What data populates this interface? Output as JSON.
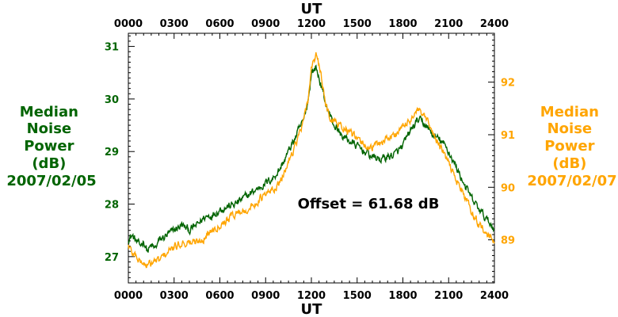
{
  "chart_data": {
    "type": "line",
    "x_unit_label": "UT",
    "x_ticks": [
      "0000",
      "0300",
      "0600",
      "0900",
      "1200",
      "1500",
      "1800",
      "2100",
      "2400"
    ],
    "xlim": [
      0,
      24
    ],
    "left_axis": {
      "label_lines": [
        "Median",
        "Noise",
        "Power",
        "(dB)",
        "2007/02/05"
      ],
      "ticks": [
        27,
        28,
        29,
        30,
        31
      ],
      "ylim": [
        26.5,
        31.25
      ],
      "color": "#006400"
    },
    "right_axis": {
      "label_lines": [
        "Median",
        "Noise",
        "Power",
        "(dB)",
        "2007/02/07"
      ],
      "ticks": [
        89,
        90,
        91,
        92
      ],
      "ylim": [
        88.18,
        92.93
      ],
      "color": "#FFA500"
    },
    "annotation": "Offset = 61.68 dB",
    "series": [
      {
        "axis": "left",
        "color": "#006400",
        "x": [
          0,
          0.25,
          0.5,
          0.75,
          1,
          1.25,
          1.5,
          1.75,
          2,
          2.5,
          3,
          3.5,
          4,
          4.5,
          5,
          5.5,
          6,
          6.5,
          7,
          7.5,
          8,
          8.5,
          9,
          9.5,
          10,
          10.5,
          11,
          11.5,
          11.8,
          12,
          12.3,
          12.6,
          12.9,
          13.2,
          13.5,
          14,
          14.5,
          15,
          15.5,
          16,
          16.5,
          17,
          17.5,
          18,
          18.5,
          19,
          19.5,
          20,
          20.5,
          21,
          21.5,
          22,
          22.5,
          23,
          23.5,
          24
        ],
        "y": [
          27.35,
          27.4,
          27.3,
          27.2,
          27.3,
          27.1,
          27.2,
          27.15,
          27.3,
          27.4,
          27.5,
          27.6,
          27.5,
          27.6,
          27.75,
          27.8,
          27.9,
          27.95,
          28.0,
          28.1,
          28.2,
          28.3,
          28.4,
          28.5,
          28.7,
          29.0,
          29.3,
          29.6,
          30.0,
          30.5,
          30.6,
          30.3,
          29.95,
          29.7,
          29.5,
          29.3,
          29.2,
          29.1,
          29.0,
          28.9,
          28.85,
          28.9,
          28.95,
          29.1,
          29.4,
          29.6,
          29.5,
          29.3,
          29.2,
          29.0,
          28.7,
          28.4,
          28.1,
          27.9,
          27.7,
          27.55
        ]
      },
      {
        "axis": "right",
        "color": "#FFA500",
        "x": [
          0,
          0.25,
          0.5,
          0.75,
          1,
          1.25,
          1.5,
          1.75,
          2,
          2.5,
          3,
          3.5,
          4,
          4.5,
          5,
          5.5,
          6,
          6.5,
          7,
          7.5,
          8,
          8.5,
          9,
          9.5,
          10,
          10.5,
          11,
          11.5,
          11.8,
          12,
          12.3,
          12.6,
          12.9,
          13.2,
          13.5,
          14,
          14.5,
          15,
          15.5,
          16,
          16.5,
          17,
          17.5,
          18,
          18.5,
          19,
          19.5,
          20,
          20.5,
          21,
          21.5,
          22,
          22.5,
          23,
          23.5,
          24
        ],
        "y": [
          88.9,
          88.75,
          88.7,
          88.6,
          88.55,
          88.5,
          88.55,
          88.6,
          88.6,
          88.75,
          88.85,
          88.95,
          88.95,
          88.95,
          89.05,
          89.2,
          89.3,
          89.4,
          89.5,
          89.55,
          89.6,
          89.75,
          89.85,
          89.95,
          90.1,
          90.5,
          90.85,
          91.25,
          91.7,
          92.3,
          92.5,
          92.2,
          91.6,
          91.35,
          91.25,
          91.15,
          91.05,
          90.9,
          90.8,
          90.75,
          90.85,
          90.95,
          91.0,
          91.15,
          91.3,
          91.45,
          91.3,
          91.0,
          90.75,
          90.45,
          90.15,
          89.85,
          89.55,
          89.3,
          89.1,
          88.95
        ]
      }
    ]
  }
}
